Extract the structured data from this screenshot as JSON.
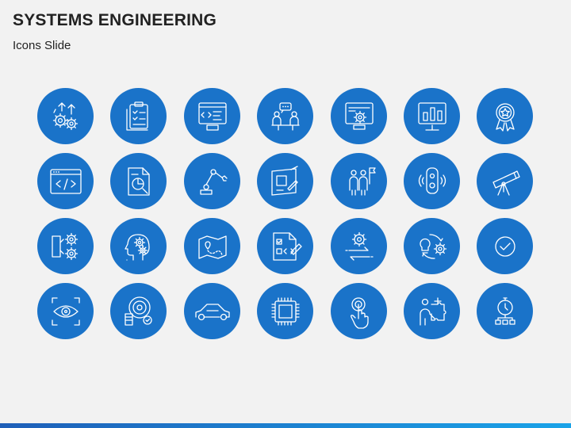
{
  "slide": {
    "title": "SYSTEMS ENGINEERING",
    "subtitle": "Icons Slide"
  },
  "colors": {
    "background": "#f2f2f2",
    "circle": "#1a73c9",
    "icon_stroke": "#ffffff",
    "bar_start": "#1f5fb8",
    "bar_end": "#1aa3e8"
  },
  "icons": [
    [
      "gears-idea-icon",
      "checklist-clipboard-icon",
      "code-monitor-icon",
      "team-meeting-icon",
      "monitor-gear-icon",
      "analytics-monitor-icon",
      "award-badge-icon"
    ],
    [
      "code-window-icon",
      "document-analysis-icon",
      "robotic-arm-icon",
      "blueprint-design-icon",
      "team-flag-icon",
      "smartphone-signal-icon",
      "telescope-icon"
    ],
    [
      "gear-process-icon",
      "head-gears-icon",
      "map-route-icon",
      "code-document-icon",
      "gear-exchange-icon",
      "idea-gear-cycle-icon",
      "checkmark-circle-icon"
    ],
    [
      "eye-scan-icon",
      "disk-money-icon",
      "car-icon",
      "microchip-icon",
      "touch-hand-icon",
      "person-puzzle-icon",
      "stopwatch-network-icon"
    ]
  ]
}
